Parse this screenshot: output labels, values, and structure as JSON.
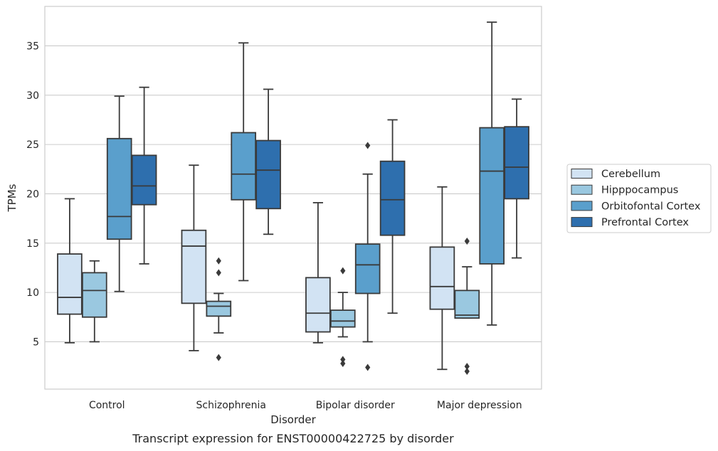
{
  "caption": "Transcript expression for ENST00000422725 by disorder",
  "chart_data": {
    "type": "box",
    "xlabel": "Disorder",
    "ylabel": "TPMs",
    "ylim": [
      0.2,
      39
    ],
    "yticks": [
      5,
      10,
      15,
      20,
      25,
      30,
      35
    ],
    "grid": "horizontal",
    "legend_position": "outside-right",
    "categories": [
      "Control",
      "Schizophrenia",
      "Bipolar disorder",
      "Major depression"
    ],
    "series": [
      {
        "name": "Cerebellum",
        "color": "#d2e3f3",
        "boxes": [
          {
            "whisker_low": 4.9,
            "q1": 7.8,
            "median": 9.5,
            "q3": 13.9,
            "whisker_high": 19.5,
            "outliers": []
          },
          {
            "whisker_low": 4.1,
            "q1": 8.9,
            "median": 14.7,
            "q3": 16.3,
            "whisker_high": 22.9,
            "outliers": []
          },
          {
            "whisker_low": 4.9,
            "q1": 6.0,
            "median": 7.9,
            "q3": 11.5,
            "whisker_high": 19.1,
            "outliers": []
          },
          {
            "whisker_low": 2.2,
            "q1": 8.3,
            "median": 10.6,
            "q3": 14.6,
            "whisker_high": 20.7,
            "outliers": []
          }
        ]
      },
      {
        "name": "Hipppocampus",
        "color": "#9ac8e0",
        "boxes": [
          {
            "whisker_low": 5.0,
            "q1": 7.5,
            "median": 10.2,
            "q3": 12.0,
            "whisker_high": 13.2,
            "outliers": []
          },
          {
            "whisker_low": 5.9,
            "q1": 7.6,
            "median": 8.6,
            "q3": 9.1,
            "whisker_high": 9.9,
            "outliers": [
              13.2,
              12.0,
              3.4
            ]
          },
          {
            "whisker_low": 5.5,
            "q1": 6.5,
            "median": 7.1,
            "q3": 8.2,
            "whisker_high": 10.0,
            "outliers": [
              12.2,
              3.2,
              2.8
            ]
          },
          {
            "whisker_low": 7.4,
            "q1": 7.4,
            "median": 7.7,
            "q3": 10.2,
            "whisker_high": 12.6,
            "outliers": [
              15.2,
              2.5,
              2.0
            ]
          }
        ]
      },
      {
        "name": "Orbitofontal Cortex",
        "color": "#5a9fcc",
        "boxes": [
          {
            "whisker_low": 10.1,
            "q1": 15.4,
            "median": 17.7,
            "q3": 25.6,
            "whisker_high": 29.9,
            "outliers": []
          },
          {
            "whisker_low": 11.2,
            "q1": 19.4,
            "median": 22.0,
            "q3": 26.2,
            "whisker_high": 35.3,
            "outliers": []
          },
          {
            "whisker_low": 5.0,
            "q1": 9.9,
            "median": 12.8,
            "q3": 14.9,
            "whisker_high": 22.0,
            "outliers": [
              24.9,
              2.4
            ]
          },
          {
            "whisker_low": 6.7,
            "q1": 12.9,
            "median": 22.3,
            "q3": 26.7,
            "whisker_high": 37.4,
            "outliers": []
          }
        ]
      },
      {
        "name": "Prefrontal Cortex",
        "color": "#2e6fae",
        "boxes": [
          {
            "whisker_low": 12.9,
            "q1": 18.9,
            "median": 20.8,
            "q3": 23.9,
            "whisker_high": 30.8,
            "outliers": []
          },
          {
            "whisker_low": 15.9,
            "q1": 18.5,
            "median": 22.4,
            "q3": 25.4,
            "whisker_high": 30.6,
            "outliers": []
          },
          {
            "whisker_low": 7.9,
            "q1": 15.8,
            "median": 19.4,
            "q3": 23.3,
            "whisker_high": 27.5,
            "outliers": []
          },
          {
            "whisker_low": 13.5,
            "q1": 19.5,
            "median": 22.7,
            "q3": 26.8,
            "whisker_high": 29.6,
            "outliers": []
          }
        ]
      }
    ]
  }
}
